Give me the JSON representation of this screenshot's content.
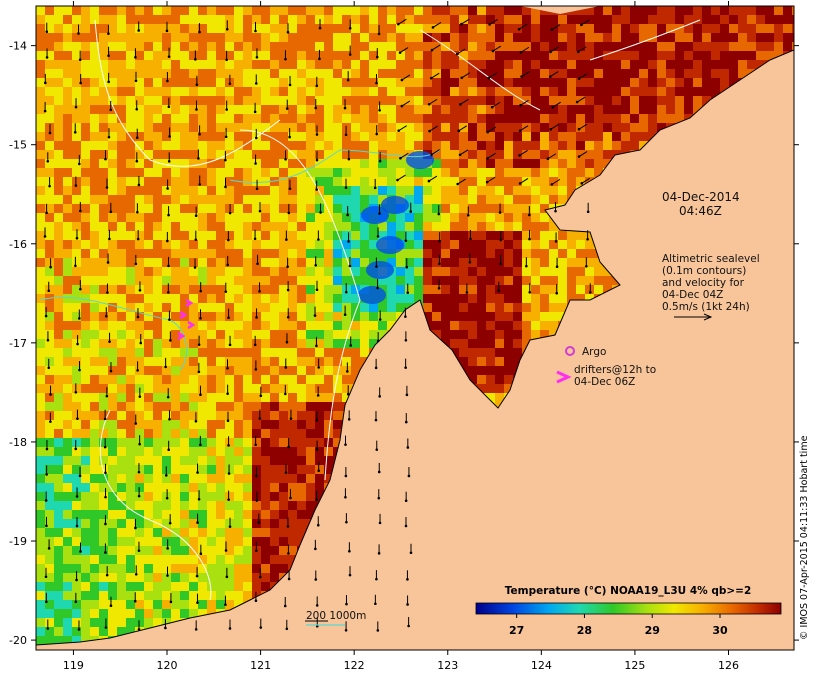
{
  "map": {
    "date": "04-Dec-2014",
    "time": "04:46Z",
    "altimetry_lines": [
      "Altimetric sealevel",
      "(0.1m contours)",
      "and velocity for",
      "04-Dec 04Z",
      "0.5m/s (1kt 24h)"
    ],
    "argo_label": "Argo",
    "drifters_lines": [
      "drifters@12h to",
      "04-Dec 06Z"
    ],
    "isobath_label": "200  1000m",
    "credit": "© IMOS 07-Apr-2015 04:11:33 Hobart time",
    "colorbar": {
      "title": "Temperature (°C) NOAA19_L3U 4% qb>=2",
      "ticks": [
        "27",
        "28",
        "29",
        "30"
      ],
      "tick_values": [
        27,
        28,
        29,
        30
      ],
      "range": [
        26.4,
        30.9
      ]
    },
    "lon_ticks": [
      "119",
      "120",
      "121",
      "122",
      "123",
      "124",
      "125",
      "126"
    ],
    "lon_values": [
      119,
      120,
      121,
      122,
      123,
      124,
      125,
      126
    ],
    "lat_ticks": [
      "-14",
      "-15",
      "-16",
      "-17",
      "-18",
      "-19",
      "-20"
    ],
    "lat_values": [
      -14,
      -15,
      -16,
      -17,
      -18,
      -19,
      -20
    ],
    "extent": {
      "lon": [
        118.6,
        126.7
      ],
      "lat": [
        -20.1,
        -13.6
      ]
    },
    "colors": {
      "land": "#f8c59a",
      "argo": "#d23cd2",
      "drifter": "#ff2ef0",
      "isobath": "#58d8d0"
    }
  }
}
